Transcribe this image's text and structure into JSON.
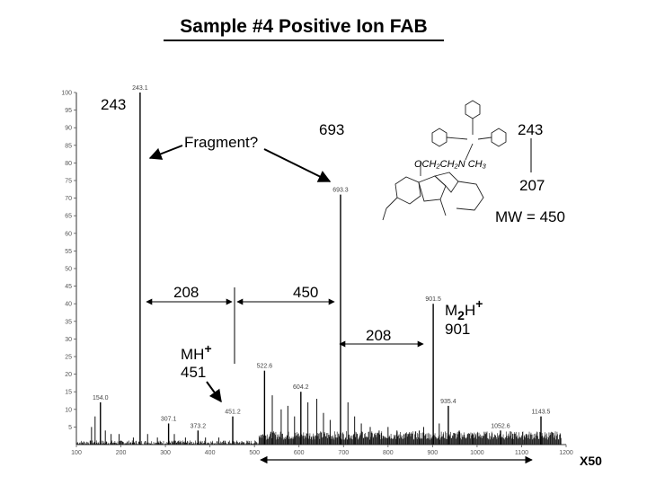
{
  "title": "Sample #4  Positive Ion FAB",
  "chart_data": {
    "type": "bar",
    "xlim": [
      100,
      1200
    ],
    "ylim": [
      0,
      100
    ],
    "x_ticks": [
      "100",
      "200",
      "300",
      "400",
      "500",
      "600",
      "700",
      "800",
      "900",
      "1000",
      "1100",
      "1200"
    ],
    "y_ticks": [
      "5",
      "10",
      "15",
      "20",
      "25",
      "30",
      "35",
      "40",
      "45",
      "50",
      "55",
      "60",
      "65",
      "70",
      "75",
      "80",
      "85",
      "90",
      "95",
      "100"
    ],
    "peaks": [
      {
        "mz": 154.0,
        "label": "154.0",
        "intensity": 12
      },
      {
        "mz": 243.1,
        "label": "243.1",
        "intensity": 100
      },
      {
        "mz": 307.1,
        "label": "307.1",
        "intensity": 6
      },
      {
        "mz": 373.2,
        "label": "373.2",
        "intensity": 4
      },
      {
        "mz": 451.2,
        "label": "451.2",
        "intensity": 8
      },
      {
        "mz": 522.6,
        "label": "522.6",
        "intensity": 21
      },
      {
        "mz": 604.2,
        "label": "604.2",
        "intensity": 15
      },
      {
        "mz": 693.3,
        "label": "693.3",
        "intensity": 71
      },
      {
        "mz": 901.5,
        "label": "901.5",
        "intensity": 40
      },
      {
        "mz": 935.4,
        "label": "935.4",
        "intensity": 11
      },
      {
        "mz": 1052.6,
        "label": "1052.6",
        "intensity": 4
      },
      {
        "mz": 1143.5,
        "label": "1143.5",
        "intensity": 8
      }
    ],
    "minor_peaks": [
      {
        "mz": 134,
        "intensity": 5
      },
      {
        "mz": 142,
        "intensity": 8
      },
      {
        "mz": 165,
        "intensity": 4
      },
      {
        "mz": 178,
        "intensity": 3
      },
      {
        "mz": 196,
        "intensity": 3
      },
      {
        "mz": 228,
        "intensity": 2
      },
      {
        "mz": 260,
        "intensity": 3
      },
      {
        "mz": 282,
        "intensity": 2
      },
      {
        "mz": 320,
        "intensity": 3
      },
      {
        "mz": 345,
        "intensity": 2
      },
      {
        "mz": 390,
        "intensity": 2
      },
      {
        "mz": 420,
        "intensity": 2
      },
      {
        "mz": 540,
        "intensity": 14
      },
      {
        "mz": 560,
        "intensity": 10
      },
      {
        "mz": 575,
        "intensity": 11
      },
      {
        "mz": 590,
        "intensity": 8
      },
      {
        "mz": 620,
        "intensity": 12
      },
      {
        "mz": 640,
        "intensity": 13
      },
      {
        "mz": 655,
        "intensity": 9
      },
      {
        "mz": 670,
        "intensity": 7
      },
      {
        "mz": 710,
        "intensity": 12
      },
      {
        "mz": 725,
        "intensity": 8
      },
      {
        "mz": 740,
        "intensity": 6
      },
      {
        "mz": 760,
        "intensity": 5
      },
      {
        "mz": 780,
        "intensity": 4
      },
      {
        "mz": 800,
        "intensity": 5
      },
      {
        "mz": 820,
        "intensity": 4
      },
      {
        "mz": 845,
        "intensity": 3
      },
      {
        "mz": 870,
        "intensity": 4
      },
      {
        "mz": 880,
        "intensity": 5
      },
      {
        "mz": 915,
        "intensity": 6
      },
      {
        "mz": 960,
        "intensity": 4
      },
      {
        "mz": 990,
        "intensity": 3
      },
      {
        "mz": 1020,
        "intensity": 3
      },
      {
        "mz": 1080,
        "intensity": 2
      },
      {
        "mz": 1110,
        "intensity": 3
      }
    ],
    "annotations": {
      "peak_243": "243",
      "fragment": "Fragment?",
      "peak_693": "693",
      "struct_243": "243",
      "struct_207": "207",
      "mw": "MW = 450",
      "gap_208_left": "208",
      "gap_450": "450",
      "gap_208_right": "208",
      "mh_base": "MH",
      "mh_sup": "+",
      "mh_value": "451",
      "m2h_base": "M",
      "m2h_sub": "2",
      "m2h_h": "H",
      "m2h_sup": "+",
      "m2h_value": "901",
      "magnification": "X50"
    }
  }
}
